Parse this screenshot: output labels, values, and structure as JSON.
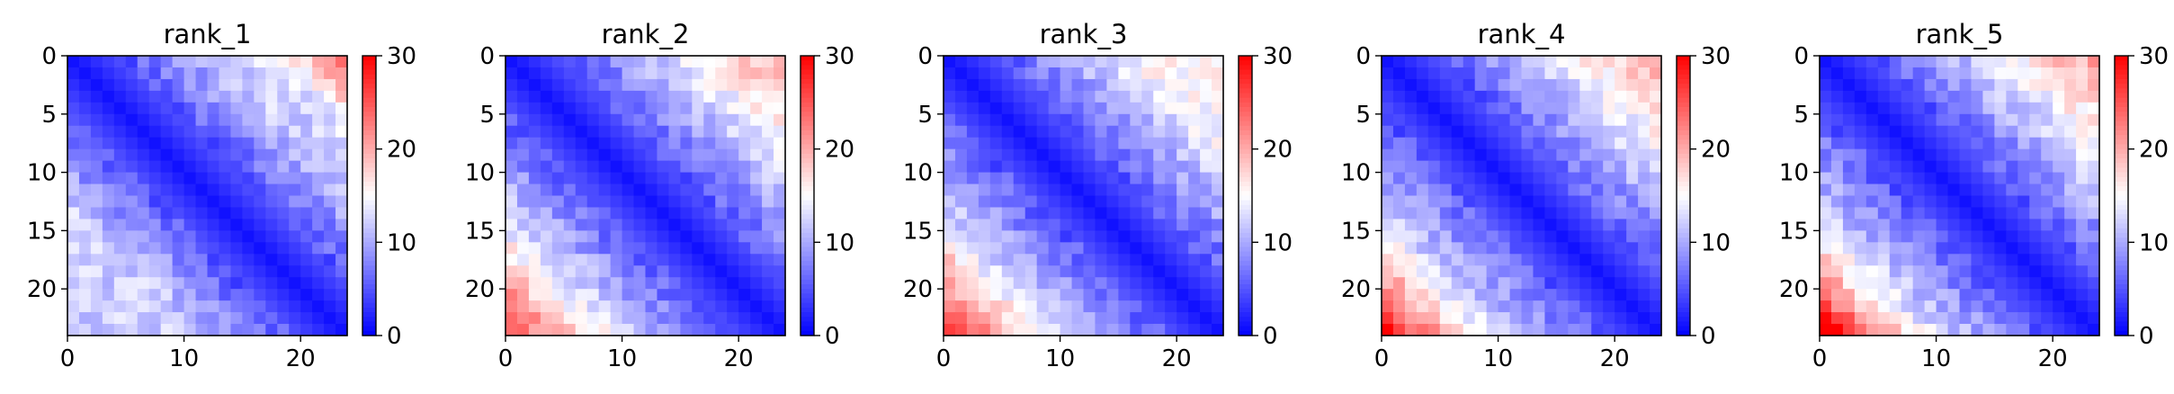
{
  "chart_data": [
    {
      "type": "heatmap",
      "title": "rank_1",
      "size": 24,
      "colormap": "bwr",
      "vmin": 0,
      "vmax": 30,
      "xticks": [
        0,
        10,
        20
      ],
      "yticks": [
        0,
        5,
        10,
        15,
        20
      ],
      "colorbar_ticks": [
        0,
        10,
        20,
        30
      ],
      "far_value": 10,
      "far_side": "upper-right",
      "far_corner": 22
    },
    {
      "type": "heatmap",
      "title": "rank_2",
      "size": 24,
      "colormap": "bwr",
      "vmin": 0,
      "vmax": 30,
      "xticks": [
        0,
        10,
        20
      ],
      "yticks": [
        0,
        5,
        10,
        15,
        20
      ],
      "colorbar_ticks": [
        0,
        10,
        20,
        30
      ],
      "far_value": 16,
      "far_side": "lower-left",
      "far_corner": 22
    },
    {
      "type": "heatmap",
      "title": "rank_3",
      "size": 24,
      "colormap": "bwr",
      "vmin": 0,
      "vmax": 30,
      "xticks": [
        0,
        10,
        20
      ],
      "yticks": [
        0,
        5,
        10,
        15,
        20
      ],
      "colorbar_ticks": [
        0,
        10,
        20,
        30
      ],
      "far_value": 13,
      "far_side": "lower-left",
      "far_corner": 26
    },
    {
      "type": "heatmap",
      "title": "rank_4",
      "size": 24,
      "colormap": "bwr",
      "vmin": 0,
      "vmax": 30,
      "xticks": [
        0,
        10,
        20
      ],
      "yticks": [
        0,
        5,
        10,
        15,
        20
      ],
      "colorbar_ticks": [
        0,
        10,
        20,
        30
      ],
      "far_value": 18,
      "far_side": "lower-left",
      "far_corner": 27
    },
    {
      "type": "heatmap",
      "title": "rank_5",
      "size": 24,
      "colormap": "bwr",
      "vmin": 0,
      "vmax": 30,
      "xticks": [
        0,
        10,
        20
      ],
      "yticks": [
        0,
        5,
        10,
        15,
        20
      ],
      "colorbar_ticks": [
        0,
        10,
        20,
        30
      ],
      "far_value": 18,
      "far_side": "lower-left",
      "far_corner": 28
    }
  ]
}
